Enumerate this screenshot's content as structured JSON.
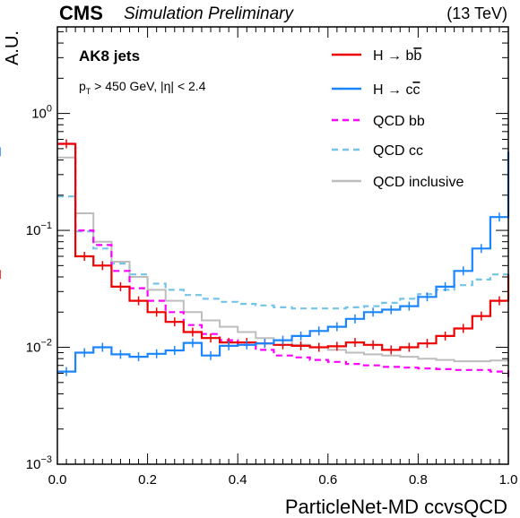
{
  "header": {
    "cms": "CMS",
    "status": "Simulation Preliminary",
    "energy": "(13 TeV)"
  },
  "annotations": {
    "jet_label": "AK8 jets",
    "cut_pt_symbol": "p",
    "cut_pt_sub": "T",
    "cut_rest": " > 450 GeV, |η| < 2.4"
  },
  "chart_data": {
    "type": "line",
    "title": "",
    "xlabel": "ParticleNet-MD ccvsQCD",
    "ylabel": "A.U.",
    "xlim": [
      0.0,
      1.0
    ],
    "ylim": [
      0.001,
      5.5
    ],
    "yscale": "log",
    "x_ticks": [
      "0.0",
      "0.2",
      "0.4",
      "0.6",
      "0.8",
      "1.0"
    ],
    "y_ticks": [
      {
        "base": "10",
        "exp": "−3",
        "value": 0.001
      },
      {
        "base": "10",
        "exp": "−2",
        "value": 0.01
      },
      {
        "base": "10",
        "exp": "−1",
        "value": 0.1
      },
      {
        "base": "10",
        "exp": "0",
        "value": 1
      }
    ],
    "grid": false,
    "legend_position": "top-right",
    "bin_edges": [
      0.0,
      0.04,
      0.08,
      0.12,
      0.16,
      0.2,
      0.24,
      0.28,
      0.32,
      0.36,
      0.4,
      0.44,
      0.48,
      0.52,
      0.56,
      0.6,
      0.64,
      0.68,
      0.72,
      0.76,
      0.8,
      0.84,
      0.88,
      0.92,
      0.96,
      1.0
    ],
    "series": [
      {
        "name": "H → bb̄",
        "label_main": "H → b",
        "label_bar": "b",
        "color": "#ee0000",
        "dash": "",
        "errors": true,
        "values": [
          0.55,
          0.06,
          0.05,
          0.033,
          0.025,
          0.02,
          0.0165,
          0.0135,
          0.012,
          0.011,
          0.011,
          0.0108,
          0.0105,
          0.0103,
          0.01,
          0.0102,
          0.011,
          0.0105,
          0.0095,
          0.01,
          0.0108,
          0.0125,
          0.0145,
          0.0185,
          0.025,
          0.042
        ]
      },
      {
        "name": "H → cc̄",
        "label_main": "H → c",
        "label_bar": "c",
        "color": "#1a85ff",
        "dash": "",
        "errors": true,
        "values": [
          0.0062,
          0.009,
          0.01,
          0.0087,
          0.0083,
          0.0088,
          0.0094,
          0.0109,
          0.0085,
          0.0103,
          0.0105,
          0.0108,
          0.0115,
          0.0125,
          0.0138,
          0.015,
          0.0175,
          0.02,
          0.021,
          0.0225,
          0.027,
          0.033,
          0.045,
          0.07,
          0.13,
          0.47
        ]
      },
      {
        "name": "QCD bb",
        "label_main": "QCD bb",
        "color": "#ff00ff",
        "dash": "7,5",
        "errors": false,
        "values": [
          0.55,
          0.1,
          0.075,
          0.045,
          0.032,
          0.025,
          0.02,
          0.0155,
          0.013,
          0.0115,
          0.0105,
          0.0095,
          0.0085,
          0.0082,
          0.0078,
          0.0075,
          0.0072,
          0.007,
          0.0068,
          0.0067,
          0.0066,
          0.0065,
          0.0064,
          0.0064,
          0.0062,
          0.0055
        ]
      },
      {
        "name": "QCD cc",
        "label_main": "QCD cc",
        "color": "#74c4e8",
        "dash": "7,5",
        "errors": false,
        "values": [
          0.195,
          0.098,
          0.07,
          0.052,
          0.042,
          0.035,
          0.031,
          0.028,
          0.026,
          0.0245,
          0.0235,
          0.0228,
          0.022,
          0.0215,
          0.0215,
          0.0215,
          0.022,
          0.0225,
          0.024,
          0.026,
          0.0285,
          0.031,
          0.034,
          0.038,
          0.042,
          0.044
        ]
      },
      {
        "name": "QCD inclusive",
        "label_main": "QCD inclusive",
        "color": "#bdbdbd",
        "dash": "",
        "errors": false,
        "values": [
          0.42,
          0.14,
          0.08,
          0.054,
          0.04,
          0.031,
          0.025,
          0.02,
          0.017,
          0.015,
          0.0135,
          0.012,
          0.0115,
          0.0105,
          0.01,
          0.0095,
          0.009,
          0.0087,
          0.0085,
          0.0083,
          0.008,
          0.0078,
          0.0076,
          0.0076,
          0.0077,
          0.0078
        ]
      }
    ]
  }
}
